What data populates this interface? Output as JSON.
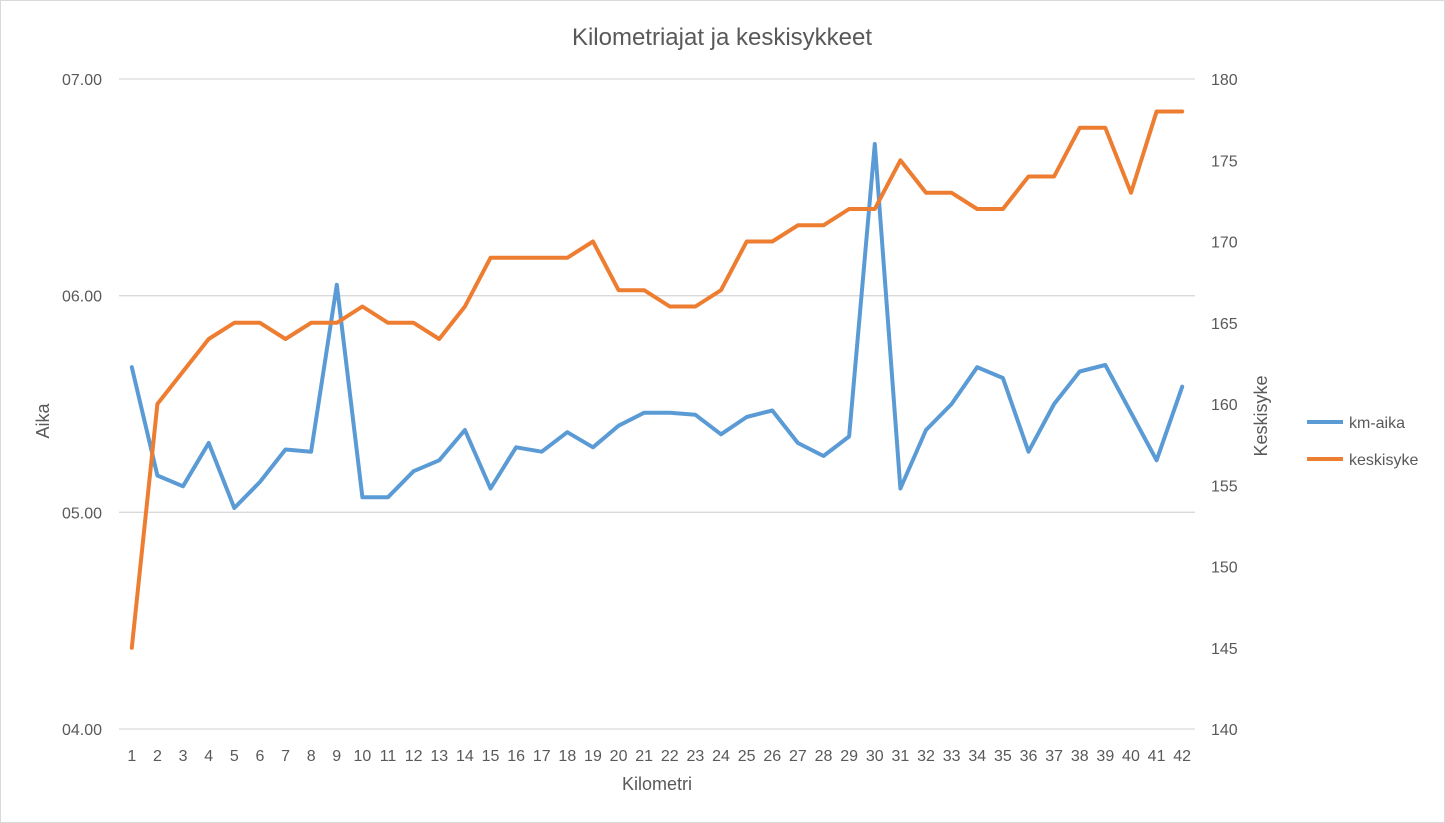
{
  "chart_data": {
    "type": "line",
    "title": "Kilometriajat ja keskisykkeet",
    "xlabel": "Kilometri",
    "ylabel": "Aika",
    "y2label": "Keskisyke",
    "categories": [
      "1",
      "2",
      "3",
      "4",
      "5",
      "6",
      "7",
      "8",
      "9",
      "10",
      "11",
      "12",
      "13",
      "14",
      "15",
      "16",
      "17",
      "18",
      "19",
      "20",
      "21",
      "22",
      "23",
      "24",
      "25",
      "26",
      "27",
      "28",
      "29",
      "30",
      "31",
      "32",
      "33",
      "34",
      "35",
      "36",
      "37",
      "38",
      "39",
      "40",
      "41",
      "42"
    ],
    "y_axis": {
      "min": 4.0,
      "max": 7.0,
      "ticks": [
        4.0,
        5.0,
        6.0,
        7.0
      ],
      "tick_labels": [
        "04.00",
        "05.00",
        "06.00",
        "07.00"
      ]
    },
    "y2_axis": {
      "min": 140,
      "max": 180,
      "ticks": [
        140,
        145,
        150,
        155,
        160,
        165,
        170,
        175,
        180
      ],
      "tick_labels": [
        "140",
        "145",
        "150",
        "155",
        "160",
        "165",
        "170",
        "175",
        "180"
      ]
    },
    "grid": true,
    "legend_position": "right",
    "series": [
      {
        "name": "km-aika",
        "axis": "left",
        "color": "#5b9bd5",
        "values": [
          5.67,
          5.17,
          5.12,
          5.32,
          5.02,
          5.14,
          5.29,
          5.28,
          6.05,
          5.07,
          5.07,
          5.19,
          5.24,
          5.38,
          5.11,
          5.3,
          5.28,
          5.37,
          5.3,
          5.4,
          5.46,
          5.46,
          5.45,
          5.36,
          5.44,
          5.47,
          5.32,
          5.26,
          5.35,
          6.7,
          5.11,
          5.38,
          5.5,
          5.67,
          5.62,
          5.28,
          5.5,
          5.65,
          5.68,
          5.46,
          5.24,
          5.58
        ]
      },
      {
        "name": "keskisyke",
        "axis": "right",
        "color": "#ed7d31",
        "values": [
          145,
          160,
          162,
          164,
          165,
          165,
          164,
          165,
          165,
          166,
          165,
          165,
          164,
          166,
          169,
          169,
          169,
          169,
          170,
          167,
          167,
          166,
          166,
          167,
          170,
          170,
          171,
          171,
          172,
          172,
          175,
          173,
          173,
          172,
          172,
          174,
          174,
          177,
          177,
          173,
          178,
          178
        ]
      }
    ]
  }
}
